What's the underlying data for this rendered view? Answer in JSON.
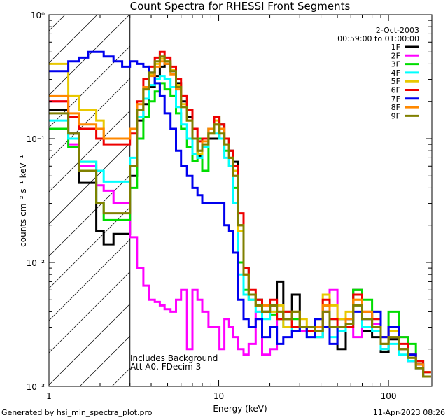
{
  "chart_data": {
    "type": "line",
    "title": "Count Spectra for RHESSI Front Segments",
    "xlabel": "Energy (keV)",
    "ylabel": "counts cm⁻² s⁻¹ keV⁻¹",
    "xscale": "log",
    "yscale": "log",
    "xlim": [
      1,
      180
    ],
    "ylim": [
      0.001,
      1
    ],
    "x_ticks": [
      {
        "v": 1,
        "label": "1"
      },
      {
        "v": 10,
        "label": "10"
      },
      {
        "v": 100,
        "label": "100"
      }
    ],
    "y_ticks": [
      {
        "v": 1,
        "label": "10⁰"
      },
      {
        "v": 0.1,
        "label": "10⁻¹"
      },
      {
        "v": 0.01,
        "label": "10⁻²"
      },
      {
        "v": 0.001,
        "label": "10⁻³"
      }
    ],
    "date": "2-Oct-2003",
    "time_range": "00:59:00 to 01:00:00",
    "annotation_line1": "Includes Background",
    "annotation_line2": "Att A0, FDecim 3",
    "shaded_region_upper_keV": 3,
    "legend_position": "top-right",
    "series": [
      {
        "name": "1F",
        "color": "#000000",
        "values": [
          0.17,
          0.17,
          0.17,
          0.11,
          0.044,
          0.044,
          0.018,
          0.014,
          0.017,
          0.017,
          0.05,
          0.14,
          0.19,
          0.26,
          0.32,
          0.38,
          0.4,
          0.35,
          0.28,
          0.2,
          0.15,
          0.1,
          0.072,
          0.085,
          0.1,
          0.1,
          0.13,
          0.1,
          0.08,
          0.065,
          0.02,
          0.009,
          0.0055,
          0.005,
          0.004,
          0.0045,
          0.007,
          0.0035,
          0.0055,
          0.003,
          0.003,
          0.0028,
          0.004,
          0.003,
          0.002,
          0.0032,
          0.006,
          0.0028,
          0.0025,
          0.0019,
          0.0024,
          0.002,
          0.0016,
          0.0015,
          0.0012
        ]
      },
      {
        "name": "2F",
        "color": "#ff00ff",
        "values": [
          0.2,
          0.2,
          0.2,
          0.09,
          0.06,
          0.06,
          0.042,
          0.038,
          0.03,
          0.03,
          0.016,
          0.009,
          0.0065,
          0.005,
          0.0048,
          0.0045,
          0.0042,
          0.004,
          0.005,
          0.006,
          0.002,
          0.006,
          0.005,
          0.004,
          0.003,
          0.003,
          0.002,
          0.0035,
          0.003,
          0.0025,
          0.002,
          0.0018,
          0.0022,
          0.004,
          0.0018,
          0.002,
          0.0035,
          0.004,
          0.003,
          0.0028,
          0.003,
          0.0025,
          0.004,
          0.006,
          0.0035,
          0.003,
          0.0025,
          0.003,
          0.0032,
          0.002,
          0.0028,
          0.0025,
          0.0016,
          0.0014,
          0.0012
        ]
      },
      {
        "name": "3F",
        "color": "#00dd00",
        "values": [
          0.12,
          0.12,
          0.12,
          0.085,
          0.065,
          0.065,
          0.03,
          0.022,
          0.022,
          0.022,
          0.04,
          0.1,
          0.15,
          0.2,
          0.24,
          0.28,
          0.25,
          0.22,
          0.16,
          0.12,
          0.085,
          0.066,
          0.1,
          0.055,
          0.12,
          0.15,
          0.1,
          0.08,
          0.06,
          0.04,
          0.01,
          0.006,
          0.005,
          0.0045,
          0.004,
          0.0038,
          0.0035,
          0.004,
          0.0035,
          0.003,
          0.0028,
          0.0025,
          0.0045,
          0.0035,
          0.0035,
          0.0035,
          0.006,
          0.005,
          0.004,
          0.002,
          0.004,
          0.0025,
          0.0022,
          0.0016,
          0.0013
        ]
      },
      {
        "name": "4F",
        "color": "#00ffff",
        "values": [
          0.14,
          0.14,
          0.14,
          0.1,
          0.065,
          0.065,
          0.055,
          0.045,
          0.045,
          0.045,
          0.07,
          0.15,
          0.21,
          0.27,
          0.3,
          0.32,
          0.3,
          0.26,
          0.18,
          0.13,
          0.1,
          0.075,
          0.07,
          0.085,
          0.12,
          0.11,
          0.1,
          0.07,
          0.06,
          0.03,
          0.008,
          0.0055,
          0.005,
          0.004,
          0.0035,
          0.004,
          0.0035,
          0.003,
          0.0028,
          0.003,
          0.0025,
          0.0025,
          0.003,
          0.0025,
          0.0028,
          0.003,
          0.0045,
          0.003,
          0.0028,
          0.002,
          0.0022,
          0.0018,
          0.0016,
          0.0014,
          0.0012
        ]
      },
      {
        "name": "5F",
        "color": "#e8c800",
        "values": [
          0.4,
          0.4,
          0.4,
          0.22,
          0.17,
          0.17,
          0.14,
          0.1,
          0.1,
          0.1,
          0.12,
          0.17,
          0.25,
          0.33,
          0.4,
          0.44,
          0.42,
          0.36,
          0.27,
          0.19,
          0.14,
          0.1,
          0.075,
          0.09,
          0.11,
          0.14,
          0.12,
          0.1,
          0.07,
          0.055,
          0.018,
          0.008,
          0.0055,
          0.0045,
          0.0045,
          0.004,
          0.0045,
          0.003,
          0.004,
          0.0035,
          0.003,
          0.0035,
          0.0055,
          0.0045,
          0.0035,
          0.004,
          0.005,
          0.004,
          0.003,
          0.0022,
          0.0028,
          0.002,
          0.0018,
          0.0015,
          0.0013
        ]
      },
      {
        "name": "6F",
        "color": "#ee0000",
        "values": [
          0.2,
          0.2,
          0.2,
          0.15,
          0.12,
          0.12,
          0.1,
          0.09,
          0.09,
          0.09,
          0.11,
          0.2,
          0.3,
          0.38,
          0.45,
          0.5,
          0.45,
          0.38,
          0.3,
          0.22,
          0.17,
          0.12,
          0.095,
          0.1,
          0.12,
          0.15,
          0.13,
          0.1,
          0.08,
          0.06,
          0.025,
          0.009,
          0.006,
          0.005,
          0.004,
          0.005,
          0.0035,
          0.004,
          0.003,
          0.003,
          0.0028,
          0.003,
          0.005,
          0.0035,
          0.003,
          0.003,
          0.0055,
          0.004,
          0.0035,
          0.0025,
          0.003,
          0.0022,
          0.0018,
          0.0016,
          0.0013
        ]
      },
      {
        "name": "7F",
        "color": "#0000ee",
        "values": [
          0.35,
          0.35,
          0.35,
          0.42,
          0.45,
          0.5,
          0.5,
          0.46,
          0.42,
          0.38,
          0.42,
          0.4,
          0.38,
          0.34,
          0.28,
          0.22,
          0.16,
          0.12,
          0.08,
          0.06,
          0.05,
          0.04,
          0.035,
          0.03,
          0.03,
          0.03,
          0.03,
          0.02,
          0.018,
          0.012,
          0.005,
          0.0035,
          0.003,
          0.0035,
          0.0025,
          0.003,
          0.0022,
          0.0025,
          0.0028,
          0.003,
          0.0025,
          0.0035,
          0.003,
          0.0022,
          0.003,
          0.0035,
          0.004,
          0.0035,
          0.004,
          0.0025,
          0.003,
          0.002,
          0.0018,
          0.0015,
          0.0012
        ]
      },
      {
        "name": "8F",
        "color": "#ff8800",
        "values": [
          0.22,
          0.22,
          0.22,
          0.16,
          0.13,
          0.13,
          0.12,
          0.1,
          0.1,
          0.1,
          0.12,
          0.19,
          0.26,
          0.32,
          0.38,
          0.42,
          0.4,
          0.33,
          0.25,
          0.18,
          0.14,
          0.1,
          0.08,
          0.095,
          0.12,
          0.13,
          0.12,
          0.09,
          0.07,
          0.05,
          0.02,
          0.008,
          0.0055,
          0.0045,
          0.0045,
          0.0045,
          0.004,
          0.0035,
          0.004,
          0.003,
          0.003,
          0.003,
          0.0045,
          0.003,
          0.003,
          0.0035,
          0.005,
          0.004,
          0.003,
          0.0022,
          0.0025,
          0.002,
          0.0017,
          0.0015,
          0.0012
        ]
      },
      {
        "name": "9F",
        "color": "#808000",
        "values": [
          0.16,
          0.16,
          0.16,
          0.11,
          0.055,
          0.055,
          0.03,
          0.025,
          0.025,
          0.025,
          0.06,
          0.17,
          0.25,
          0.34,
          0.42,
          0.46,
          0.42,
          0.35,
          0.26,
          0.18,
          0.14,
          0.1,
          0.08,
          0.09,
          0.11,
          0.13,
          0.11,
          0.09,
          0.07,
          0.05,
          0.02,
          0.008,
          0.0055,
          0.0045,
          0.004,
          0.0045,
          0.004,
          0.0035,
          0.004,
          0.003,
          0.003,
          0.0028,
          0.004,
          0.003,
          0.003,
          0.0032,
          0.0045,
          0.0035,
          0.003,
          0.0022,
          0.0025,
          0.002,
          0.0017,
          0.0014,
          0.0012
        ]
      }
    ],
    "x_edges": [
      1.0,
      1.1,
      1.2,
      1.3,
      1.5,
      1.7,
      1.9,
      2.1,
      2.4,
      2.7,
      3.0,
      3.3,
      3.6,
      3.9,
      4.2,
      4.5,
      4.8,
      5.2,
      5.6,
      6.0,
      6.5,
      7.0,
      7.5,
      8.0,
      8.7,
      9.4,
      10.1,
      10.8,
      11.5,
      12.2,
      13.0,
      14.0,
      15.0,
      16.5,
      18.0,
      20.0,
      22.0,
      24.0,
      27.0,
      30.0,
      33.0,
      37.0,
      41.0,
      45.0,
      50.0,
      56.0,
      62.0,
      70.0,
      80.0,
      90.0,
      100.0,
      115.0,
      130.0,
      145.0,
      160.0,
      178.0
    ]
  },
  "footer": {
    "left": "Generated by hsi_min_spectra_plot.pro",
    "right": "11-Apr-2023 08:26"
  }
}
